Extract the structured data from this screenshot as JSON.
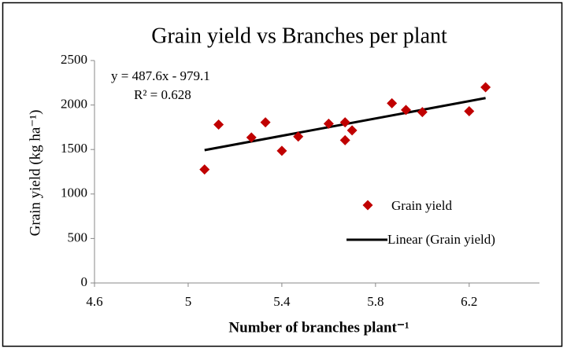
{
  "chart_data": {
    "type": "scatter",
    "title": "Grain yield vs Branches per plant",
    "x_label": "Number of branches plant⁻¹",
    "y_label": "Grain yield (kg ha⁻¹)",
    "series": [
      {
        "name": "Grain yield",
        "color": "#c00000",
        "x": [
          5.07,
          5.13,
          5.27,
          5.33,
          5.4,
          5.47,
          5.6,
          5.67,
          5.67,
          5.7,
          5.87,
          5.93,
          6.0,
          6.2,
          6.27
        ],
        "values": [
          1275,
          1780,
          1635,
          1805,
          1485,
          1645,
          1790,
          1805,
          1605,
          1715,
          2020,
          1945,
          1920,
          1930,
          2200
        ]
      }
    ],
    "trendline": {
      "name": "Linear (Grain yield)",
      "equation": "y = 487.6x - 979.1",
      "r_squared": "R² = 0.628",
      "slope": 487.6,
      "intercept": -979.1,
      "color": "#000000"
    },
    "xlim": [
      4.6,
      6.5
    ],
    "xticks": [
      4.6,
      5,
      5.4,
      5.8,
      6.2
    ],
    "ylim": [
      0,
      2500
    ],
    "yticks": [
      0,
      500,
      1000,
      1500,
      2000,
      2500
    ],
    "legend": "right"
  }
}
